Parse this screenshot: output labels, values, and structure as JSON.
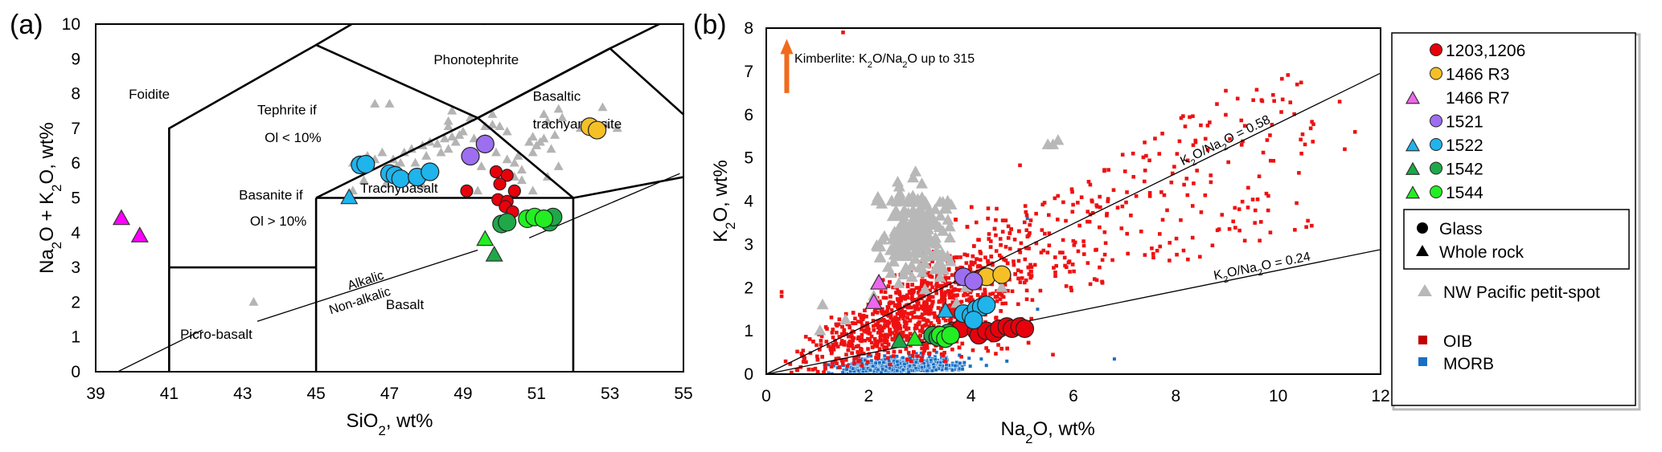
{
  "figure": {
    "panel_a_label": "(a)",
    "panel_b_label": "(b)"
  },
  "chart_data": [
    {
      "id": "a",
      "type": "scatter",
      "title": "",
      "xlabel": "SiO2, wt%",
      "xlabel_main": "SiO",
      "xlabel_sub": "2",
      "xlabel_tail": ", wt%",
      "ylabel": "Na2O + K2O, wt%",
      "ylabel_parts": [
        "Na",
        "2",
        "O + K",
        "2",
        "O, wt%"
      ],
      "xlim": [
        39,
        55
      ],
      "ylim": [
        0,
        10
      ],
      "xticks": [
        "39",
        "41",
        "43",
        "45",
        "47",
        "49",
        "51",
        "53",
        "55"
      ],
      "yticks": [
        "0",
        "1",
        "2",
        "3",
        "4",
        "5",
        "6",
        "7",
        "8",
        "9",
        "10"
      ],
      "grid": false,
      "tas_boundaries": [
        [
          [
            41,
            0
          ],
          [
            41,
            7
          ],
          [
            45,
            9.4
          ],
          [
            48.4,
            11.5
          ]
        ],
        [
          [
            41,
            3
          ],
          [
            45,
            3
          ]
        ],
        [
          [
            45,
            0
          ],
          [
            45,
            5
          ]
        ],
        [
          [
            45,
            5
          ],
          [
            49.4,
            7.3
          ],
          [
            53,
            9.3
          ],
          [
            57.6,
            11.7
          ]
        ],
        [
          [
            45,
            9.4
          ],
          [
            49.4,
            7.3
          ],
          [
            52,
            5
          ],
          [
            52,
            0
          ]
        ],
        [
          [
            45,
            5
          ],
          [
            52,
            5
          ]
        ],
        [
          [
            52,
            5
          ],
          [
            55,
            5.6
          ]
        ],
        [
          [
            49.4,
            7.3
          ],
          [
            53,
            9.3
          ]
        ],
        [
          [
            53,
            9.3
          ],
          [
            55,
            7.4
          ]
        ],
        [
          [
            48.4,
            10.2
          ],
          [
            49.6,
            10
          ]
        ]
      ],
      "alkalic_line": [
        [
          39.6,
          0
        ],
        [
          41.9,
          1.2
        ]
      ],
      "alkalic_line_b": [
        [
          43.4,
          1.45
        ],
        [
          49.4,
          3.5
        ]
      ],
      "alkalic_line_c": [
        [
          50.8,
          3.85
        ],
        [
          54.9,
          5.7
        ]
      ],
      "field_labels": [
        {
          "text": "Foidite",
          "x": 39.9,
          "y": 7.85
        },
        {
          "text": "Phonotephrite",
          "x": 48.2,
          "y": 8.85
        },
        {
          "text": "Basaltic",
          "x": 50.9,
          "y": 7.8
        },
        {
          "text": "trachyandesite",
          "x": 50.9,
          "y": 7.0
        },
        {
          "text": "Tephrite if",
          "x": 43.4,
          "y": 7.4
        },
        {
          "text": "Ol < 10%",
          "x": 43.6,
          "y": 6.6
        },
        {
          "text": "Basanite if",
          "x": 42.9,
          "y": 4.95
        },
        {
          "text": "Ol > 10%",
          "x": 43.2,
          "y": 4.2
        },
        {
          "text": "Trachybasalt",
          "x": 46.2,
          "y": 5.15
        },
        {
          "text": "Picro-basalt",
          "x": 41.3,
          "y": 0.95
        },
        {
          "text": "Basalt",
          "x": 46.9,
          "y": 1.8
        }
      ],
      "alkalic_labels": {
        "alkalic": "Alkalic",
        "non_alkalic": "Non-alkalic"
      },
      "series": [
        {
          "name": "1203,1206",
          "marker": "circle",
          "color": "#e8000b",
          "small": true,
          "points": [
            [
              49.1,
              5.2
            ],
            [
              49.9,
              5.75
            ],
            [
              50.2,
              5.65
            ],
            [
              50.0,
              5.4
            ],
            [
              50.4,
              5.2
            ],
            [
              49.95,
              4.95
            ],
            [
              50.2,
              4.9
            ],
            [
              50.15,
              4.75
            ],
            [
              50.35,
              4.6
            ]
          ]
        },
        {
          "name": "1466 R3",
          "marker": "circle",
          "color": "#f5c026",
          "points": [
            [
              52.45,
              7.05
            ],
            [
              52.65,
              6.95
            ]
          ]
        },
        {
          "name": "1466 R7",
          "marker": "triangle",
          "color": "#ff00ff",
          "points": [
            [
              39.7,
              4.4
            ],
            [
              40.2,
              3.9
            ]
          ]
        },
        {
          "name": "1521",
          "marker": "circle",
          "color": "#9d6ef0",
          "points": [
            [
              49.2,
              6.2
            ],
            [
              49.6,
              6.55
            ]
          ]
        },
        {
          "name": "1522",
          "marker": "circle",
          "color": "#1fb4ec",
          "points": [
            [
              46.2,
              5.95
            ],
            [
              46.35,
              5.97
            ],
            [
              47.0,
              5.7
            ],
            [
              47.15,
              5.65
            ],
            [
              47.3,
              5.55
            ],
            [
              47.75,
              5.6
            ],
            [
              48.1,
              5.75
            ]
          ]
        },
        {
          "name": "1522 WR",
          "marker": "triangle",
          "color": "#1fb4ec",
          "points": [
            [
              45.9,
              5.0
            ]
          ]
        },
        {
          "name": "1542",
          "marker": "circle",
          "color": "#1ea848",
          "points": [
            [
              50.05,
              4.25
            ],
            [
              50.2,
              4.3
            ],
            [
              51.35,
              4.3
            ],
            [
              51.45,
              4.45
            ]
          ]
        },
        {
          "name": "1542 WR",
          "marker": "triangle",
          "color": "#1ea848",
          "points": [
            [
              49.85,
              3.35
            ]
          ]
        },
        {
          "name": "1544",
          "marker": "circle",
          "color": "#22ee22",
          "points": [
            [
              50.75,
              4.4
            ],
            [
              50.95,
              4.45
            ],
            [
              51.2,
              4.4
            ]
          ]
        },
        {
          "name": "1544 WR",
          "marker": "triangle",
          "color": "#22ee22",
          "points": [
            [
              49.6,
              3.8
            ]
          ]
        }
      ],
      "petit_spot": [
        [
          43.3,
          2.0
        ],
        [
          46.2,
          5.8
        ],
        [
          46.0,
          6.0
        ],
        [
          46.4,
          6.2
        ],
        [
          46.6,
          6.1
        ],
        [
          46.8,
          6.3
        ],
        [
          47.1,
          6.1
        ],
        [
          47.4,
          6.3
        ],
        [
          47.6,
          6.4
        ],
        [
          47.9,
          6.5
        ],
        [
          48.1,
          6.6
        ],
        [
          48.3,
          6.55
        ],
        [
          48.5,
          6.7
        ],
        [
          48.7,
          6.75
        ],
        [
          48.9,
          6.8
        ],
        [
          48.6,
          6.4
        ],
        [
          48.0,
          6.2
        ],
        [
          47.7,
          6.0
        ],
        [
          47.3,
          6.0
        ],
        [
          47.2,
          5.9
        ],
        [
          48.4,
          6.3
        ],
        [
          48.8,
          6.6
        ],
        [
          49.0,
          6.9
        ],
        [
          49.3,
          6.7
        ],
        [
          46.6,
          7.7
        ],
        [
          47.0,
          7.7
        ],
        [
          48.7,
          7.5
        ],
        [
          48.6,
          7.2
        ],
        [
          48.6,
          7.05
        ],
        [
          49.2,
          7.3
        ],
        [
          49.6,
          7.05
        ],
        [
          49.8,
          7.1
        ],
        [
          50.0,
          7.05
        ],
        [
          50.2,
          6.9
        ],
        [
          50.8,
          6.6
        ],
        [
          50.9,
          6.75
        ],
        [
          51.0,
          6.5
        ],
        [
          51.1,
          6.6
        ],
        [
          51.2,
          6.7
        ],
        [
          50.5,
          6.2
        ],
        [
          50.6,
          5.8
        ],
        [
          50.4,
          6.0
        ],
        [
          50.9,
          6.3
        ],
        [
          51.3,
          7.2
        ],
        [
          51.5,
          6.8
        ],
        [
          51.7,
          7.3
        ],
        [
          51.2,
          7.4
        ],
        [
          52.2,
          7.0
        ],
        [
          52.9,
          7.1
        ],
        [
          53.2,
          7.0
        ],
        [
          52.8,
          7.6
        ],
        [
          51.4,
          6.4
        ],
        [
          51.6,
          5.9
        ],
        [
          51.3,
          5.6
        ],
        [
          50.6,
          5.5
        ],
        [
          50.9,
          5.2
        ],
        [
          49.9,
          6.3
        ],
        [
          49.5,
          5.9
        ],
        [
          50.2,
          6.1
        ],
        [
          50.4,
          5.6
        ],
        [
          49.6,
          6.7
        ],
        [
          47.9,
          5.35
        ],
        [
          49.4,
          5.2
        ],
        [
          47.5,
          5.5
        ],
        [
          46.0,
          5.2
        ],
        [
          46.3,
          5.5
        ],
        [
          46.9,
          5.4
        ],
        [
          48.2,
          5.8
        ],
        [
          49.8,
          7.4
        ],
        [
          51.6,
          7.55
        ]
      ]
    },
    {
      "id": "b",
      "type": "scatter",
      "title": "",
      "xlabel": "Na2O, wt%",
      "xlabel_main": "Na",
      "xlabel_sub": "2",
      "xlabel_tail": "O, wt%",
      "ylabel": "K2O, wt%",
      "ylabel_parts": [
        "K",
        "2",
        "O, wt%"
      ],
      "xlim": [
        0,
        12
      ],
      "ylim": [
        0,
        8
      ],
      "xticks": [
        "0",
        "2",
        "4",
        "6",
        "8",
        "10",
        "12"
      ],
      "yticks": [
        "0",
        "1",
        "2",
        "3",
        "4",
        "5",
        "6",
        "7",
        "8"
      ],
      "grid": false,
      "ratio_lines": [
        {
          "label_main": "K",
          "label_parts": [
            "K",
            "2",
            "O/Na",
            "2",
            "O = 0.58"
          ],
          "label": "K2O/Na2O = 0.58",
          "slope": 0.58
        },
        {
          "label_main": "K",
          "label_parts": [
            "K",
            "2",
            "O/Na",
            "2",
            "O = 0.24"
          ],
          "label": "K2O/Na2O = 0.24",
          "slope": 0.24
        }
      ],
      "annotation": {
        "label": "Kimberlite: K2O/Na2O up to 315",
        "parts": [
          "Kimberlite: K",
          "2",
          "O/Na",
          "2",
          "O up to 315"
        ],
        "arrow_color": "#f26a1b"
      },
      "series": [
        {
          "name": "1203,1206",
          "marker": "circle",
          "color": "#e8000b",
          "points": [
            [
              3.55,
              0.95
            ],
            [
              3.65,
              1.0
            ],
            [
              3.8,
              1.05
            ],
            [
              4.1,
              1.0
            ],
            [
              4.15,
              0.9
            ],
            [
              4.3,
              1.0
            ],
            [
              4.45,
              0.95
            ],
            [
              4.55,
              1.05
            ],
            [
              4.7,
              1.1
            ],
            [
              4.8,
              1.05
            ],
            [
              4.95,
              1.1
            ],
            [
              5.05,
              1.05
            ]
          ]
        },
        {
          "name": "1466 R3",
          "marker": "circle",
          "color": "#f5c026",
          "points": [
            [
              4.3,
              2.25
            ],
            [
              4.6,
              2.3
            ]
          ]
        },
        {
          "name": "1466 R7",
          "marker": "triangle",
          "color": "#ee66ee",
          "points": [
            [
              2.2,
              2.1
            ],
            [
              2.1,
              1.65
            ]
          ]
        },
        {
          "name": "1521",
          "marker": "circle",
          "color": "#9d6ef0",
          "points": [
            [
              3.85,
              2.25
            ],
            [
              4.05,
              2.15
            ]
          ]
        },
        {
          "name": "1522",
          "marker": "circle",
          "color": "#1fb4ec",
          "points": [
            [
              3.85,
              1.4
            ],
            [
              4.0,
              1.35
            ],
            [
              4.1,
              1.5
            ],
            [
              4.2,
              1.55
            ],
            [
              4.3,
              1.6
            ],
            [
              4.05,
              1.25
            ]
          ]
        },
        {
          "name": "1522 WR",
          "marker": "triangle",
          "color": "#1fb4ec",
          "points": [
            [
              3.5,
              1.45
            ]
          ]
        },
        {
          "name": "1542",
          "marker": "circle",
          "color": "#1ea848",
          "points": [
            [
              3.25,
              0.9
            ],
            [
              3.35,
              0.85
            ],
            [
              3.5,
              0.85
            ],
            [
              3.55,
              0.95
            ]
          ]
        },
        {
          "name": "1542 WR",
          "marker": "triangle",
          "color": "#1ea848",
          "points": [
            [
              2.6,
              0.75
            ]
          ]
        },
        {
          "name": "1544",
          "marker": "circle",
          "color": "#22ee22",
          "points": [
            [
              3.4,
              0.9
            ],
            [
              3.5,
              0.82
            ],
            [
              3.6,
              0.9
            ]
          ]
        },
        {
          "name": "1544 WR",
          "marker": "triangle",
          "color": "#22ee22",
          "points": [
            [
              2.9,
              0.8
            ]
          ]
        }
      ],
      "oib_color": "#ee1111",
      "morb_color": "#1a6fc4",
      "petit_spot_color": "#b8b8b8"
    }
  ],
  "legend": {
    "items": [
      {
        "label": "1203,1206",
        "triangle": null,
        "circle": "#e8000b"
      },
      {
        "label": "1466 R3",
        "triangle": null,
        "circle": "#f5c026"
      },
      {
        "label": "1466 R7",
        "triangle": "#ee66ee",
        "circle": null
      },
      {
        "label": "1521",
        "triangle": null,
        "circle": "#9d6ef0"
      },
      {
        "label": "1522",
        "triangle": "#1fb4ec",
        "circle": "#1fb4ec"
      },
      {
        "label": "1542",
        "triangle": "#1ea848",
        "circle": "#1ea848"
      },
      {
        "label": "1544",
        "triangle": "#22ee22",
        "circle": "#22ee22"
      }
    ],
    "marker_key": {
      "glass": "Glass",
      "whole_rock": "Whole rock"
    },
    "petit_spot": "NW Pacific petit-spot",
    "oib": "OIB",
    "morb": "MORB"
  }
}
